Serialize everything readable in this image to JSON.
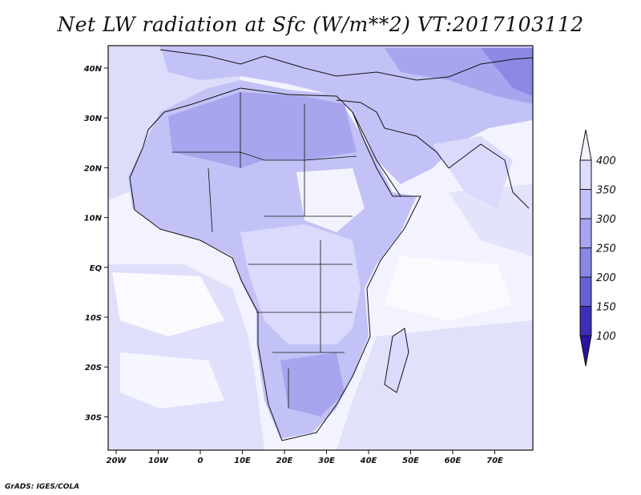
{
  "title": "Net LW radiation at Sfc (W/m**2) VT:2017103112",
  "credit": "GrADS: IGES/COLA",
  "lon_ticks": [
    "20W",
    "10W",
    "0",
    "10E",
    "20E",
    "30E",
    "40E",
    "50E",
    "60E",
    "70E"
  ],
  "lat_ticks": [
    "40N",
    "30N",
    "20N",
    "10N",
    "EQ",
    "10S",
    "20S",
    "30S"
  ],
  "colorbar": {
    "labels": [
      "400",
      "350",
      "300",
      "250",
      "200",
      "150",
      "100"
    ],
    "colors": [
      "#f4f4ff",
      "#dcdcff",
      "#c2c2fb",
      "#a7a4f2",
      "#8a86e6",
      "#6660d4",
      "#3e2fb8",
      "#2a139e"
    ]
  },
  "map_colors": {
    "lightest": "#f3f3ff",
    "light": "#dadafc",
    "medium": "#c3c2f7",
    "darker": "#a8a5ee",
    "dark": "#8c88e4"
  }
}
